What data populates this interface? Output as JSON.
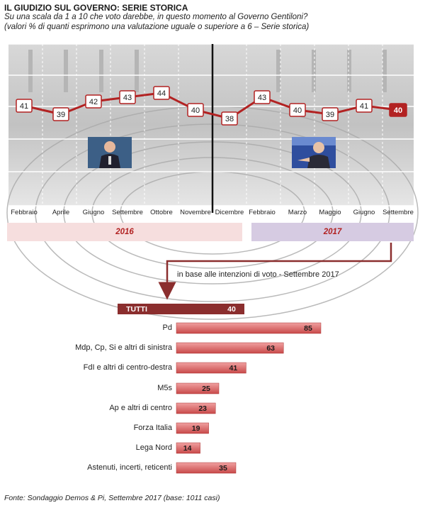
{
  "header": {
    "title": "IL GIUDIZIO SUL GOVERNO: SERIE STORICA",
    "subtitle1": "Su una scala da 1 a 10 che voto darebbe, in questo momento al Governo Gentiloni?",
    "subtitle2": "(valori % di quanti esprimono una valutazione uguale o superiore a 6 – Serie storica)"
  },
  "chart_data": [
    {
      "type": "line",
      "categories": [
        "Febbraio",
        "Aprile",
        "Giugno",
        "Settembre",
        "Ottobre",
        "Novembre",
        "Dicembre",
        "Febbraio",
        "Marzo",
        "Maggio",
        "Giugno",
        "Settembre"
      ],
      "values": [
        41,
        39,
        42,
        43,
        44,
        40,
        38,
        43,
        40,
        39,
        41,
        40
      ],
      "years": [
        {
          "label": "2016"
        },
        {
          "label": "2017"
        }
      ],
      "colors": {
        "line": "#b22222",
        "highlight": "#b22222"
      }
    },
    {
      "type": "bar",
      "subtitle": "in base alle intenzioni di voto - Settembre 2017",
      "categories": [
        "TUTTI",
        "Pd",
        "Mdp, Cp, Si e altri di sinistra",
        "FdI e altri di centro-destra",
        "M5s",
        "Ap e altri di centro",
        "Forza Italia",
        "Lega Nord",
        "Astenuti, incerti, reticenti"
      ],
      "values": [
        40,
        85,
        63,
        41,
        25,
        23,
        19,
        14,
        35
      ],
      "colors": {
        "bar": "#e07070",
        "total": "#8b2e2e"
      }
    }
  ],
  "footer": "Fonte: Sondaggio Demos & Pi, Settembre 2017 (base: 1011 casi)"
}
